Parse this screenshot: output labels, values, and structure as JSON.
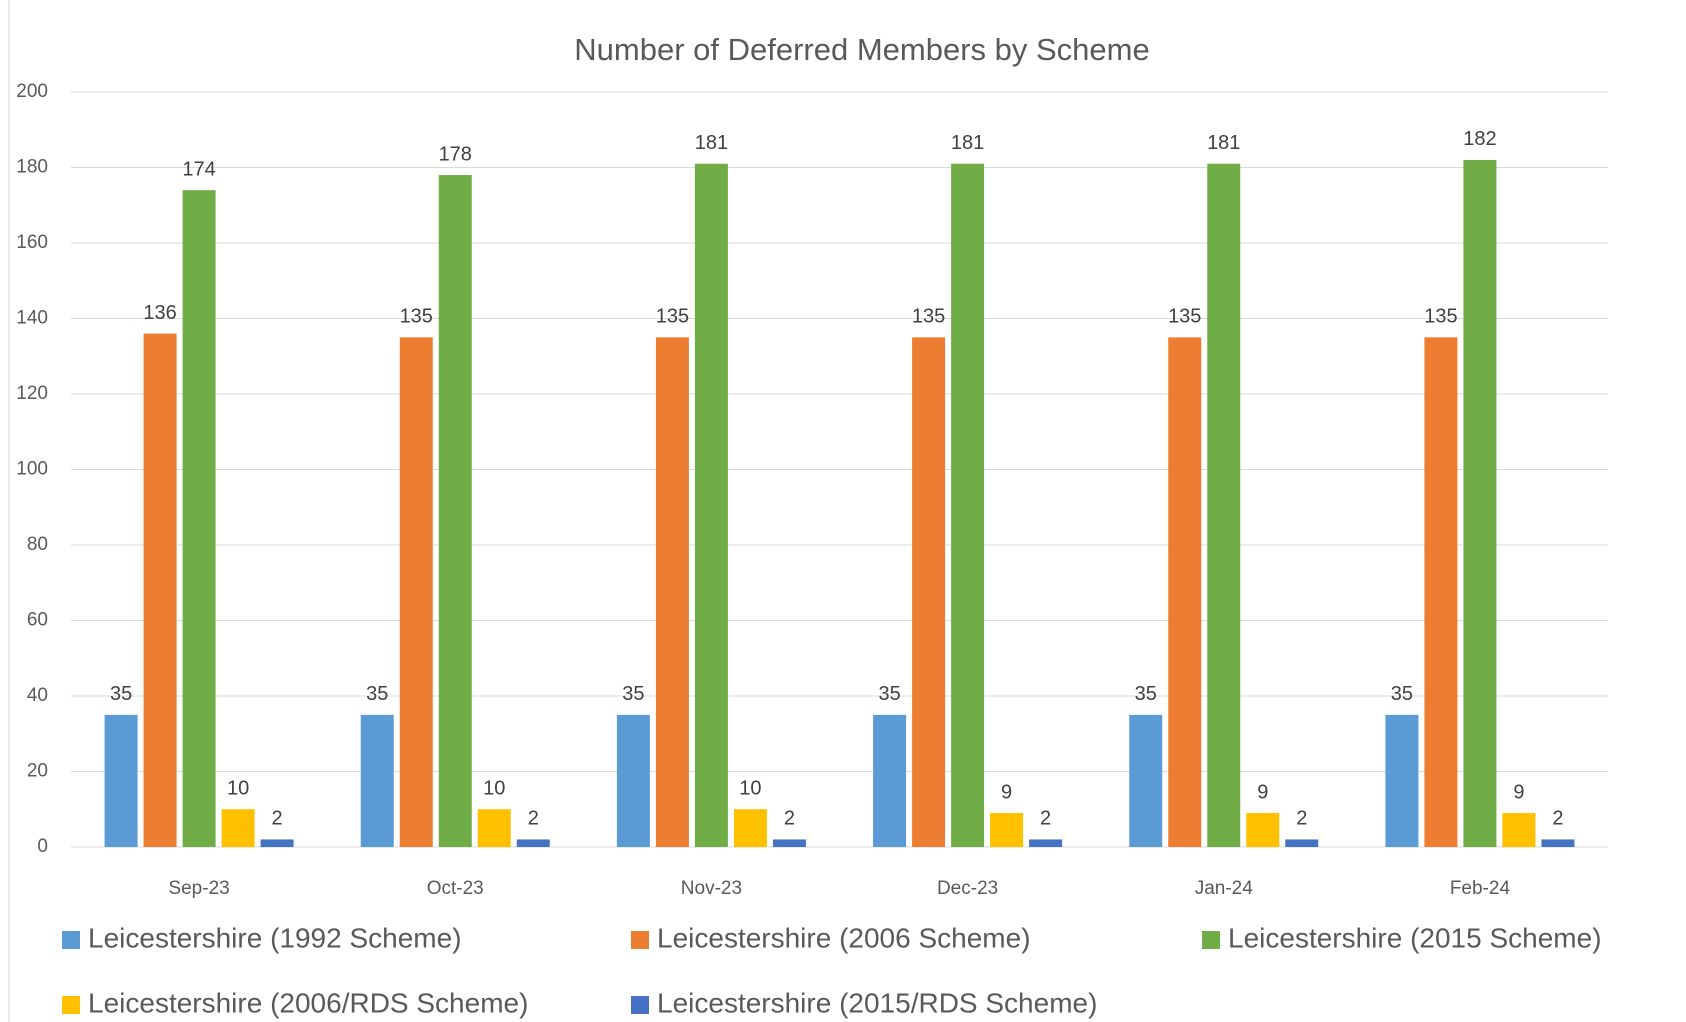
{
  "chart_data": {
    "type": "bar",
    "title": "Number of Deferred Members by Scheme",
    "categories": [
      "Sep-23",
      "Oct-23",
      "Nov-23",
      "Dec-23",
      "Jan-24",
      "Feb-24"
    ],
    "series": [
      {
        "name": "Leicestershire (1992 Scheme)",
        "color": "#5b9bd5",
        "values": [
          35,
          35,
          35,
          35,
          35,
          35
        ]
      },
      {
        "name": "Leicestershire (2006 Scheme)",
        "color": "#ed7d31",
        "values": [
          136,
          135,
          135,
          135,
          135,
          135
        ]
      },
      {
        "name": "Leicestershire (2015 Scheme)",
        "color": "#70ad47",
        "values": [
          174,
          178,
          181,
          181,
          181,
          182
        ]
      },
      {
        "name": "Leicestershire (2006/RDS Scheme)",
        "color": "#ffc000",
        "values": [
          10,
          10,
          10,
          9,
          9,
          9
        ]
      },
      {
        "name": "Leicestershire (2015/RDS Scheme)",
        "color": "#4472c4",
        "values": [
          2,
          2,
          2,
          2,
          2,
          2
        ]
      }
    ],
    "ylim": [
      0,
      200
    ],
    "yticks": [
      0,
      20,
      40,
      60,
      80,
      100,
      120,
      140,
      160,
      180,
      200
    ],
    "grid": true,
    "legend": "bottom"
  }
}
